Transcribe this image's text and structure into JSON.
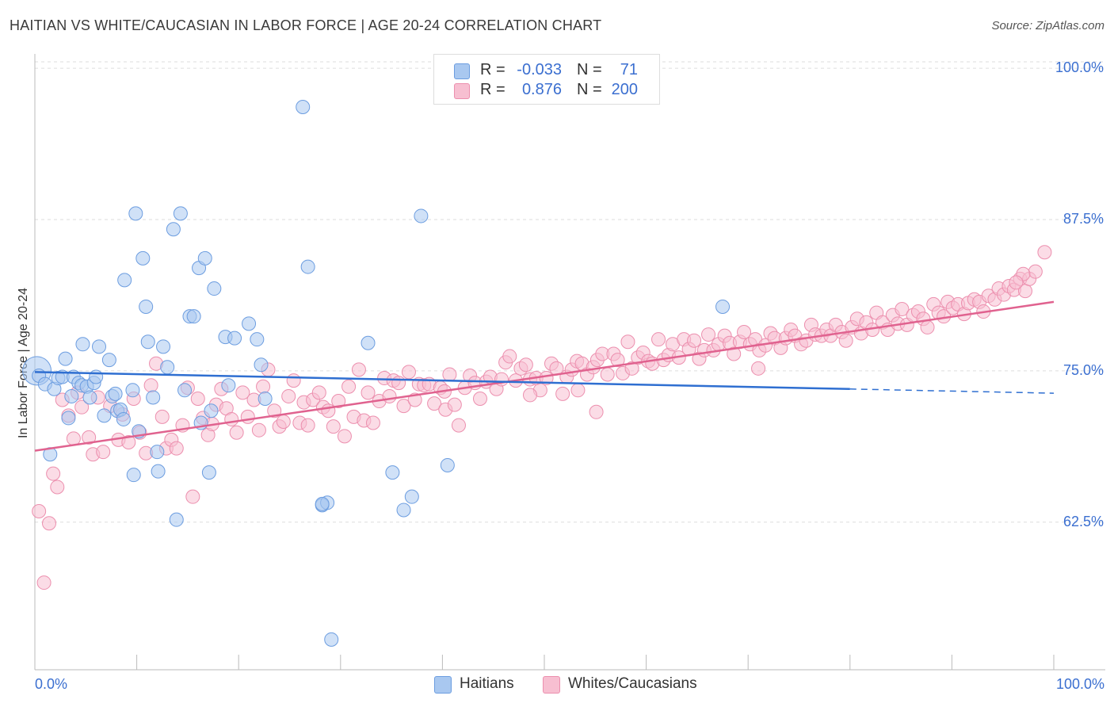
{
  "title": "HAITIAN VS WHITE/CAUCASIAN IN LABOR FORCE | AGE 20-24 CORRELATION CHART",
  "source": "Source: ZipAtlas.com",
  "colors": {
    "blue_fill": "#a9c8f0",
    "blue_stroke": "#6c9de0",
    "blue_line": "#2f6fd1",
    "pink_fill": "#f7bfd1",
    "pink_stroke": "#ec8fae",
    "pink_line": "#e0628f",
    "accent_text": "#3b6fd0",
    "grid": "#dddddd"
  },
  "stats": {
    "rows": [
      {
        "r_label": "R =",
        "r_value": "-0.033",
        "n_label": "N =",
        "n_value": "71"
      },
      {
        "r_label": "R =",
        "r_value": "0.876",
        "n_label": "N =",
        "n_value": "200"
      }
    ]
  },
  "legend": {
    "items": [
      "Haitians",
      "Whites/Caucasians"
    ]
  },
  "chart_data": {
    "type": "scatter",
    "title": "HAITIAN VS WHITE/CAUCASIAN IN LABOR FORCE | AGE 20-24 CORRELATION CHART",
    "xlabel": "",
    "ylabel": "In Labor Force | Age 20-24",
    "xlim": [
      0,
      100
    ],
    "ylim": [
      50.3,
      102.5
    ],
    "x_tick_labels": [
      "0.0%",
      "100.0%"
    ],
    "y_ticks": [
      62.5,
      75.0,
      87.5,
      100.0
    ],
    "y_tick_labels": [
      "62.5%",
      "75.0%",
      "87.5%",
      "100.0%"
    ],
    "grid": true,
    "legend_position": "bottom-center",
    "series": [
      {
        "name": "Haitians",
        "r": -0.033,
        "n": 71,
        "trend": {
          "x0": 0,
          "y0": 74.9,
          "x1": 80,
          "y1": 73.5,
          "dashed_to": 100,
          "y_end": 73.15
        },
        "points": [
          [
            0.2,
            75.0
          ],
          [
            0.4,
            74.6
          ],
          [
            1.0,
            73.9
          ],
          [
            1.5,
            68.1
          ],
          [
            1.9,
            73.5
          ],
          [
            2.3,
            74.4
          ],
          [
            2.7,
            74.5
          ],
          [
            3.0,
            76.0
          ],
          [
            3.3,
            71.1
          ],
          [
            3.6,
            72.9
          ],
          [
            3.8,
            74.5
          ],
          [
            4.3,
            74.0
          ],
          [
            4.6,
            73.8
          ],
          [
            4.7,
            77.2
          ],
          [
            5.1,
            73.7
          ],
          [
            5.4,
            72.8
          ],
          [
            5.8,
            74.0
          ],
          [
            6.0,
            74.5
          ],
          [
            6.3,
            77.0
          ],
          [
            6.8,
            71.3
          ],
          [
            7.3,
            75.9
          ],
          [
            7.6,
            72.9
          ],
          [
            7.9,
            73.1
          ],
          [
            8.1,
            71.7
          ],
          [
            8.4,
            71.8
          ],
          [
            8.7,
            71.0
          ],
          [
            8.8,
            82.5
          ],
          [
            9.6,
            73.4
          ],
          [
            9.7,
            66.4
          ],
          [
            9.9,
            88.0
          ],
          [
            10.2,
            70.0
          ],
          [
            10.6,
            84.3
          ],
          [
            10.9,
            80.3
          ],
          [
            11.1,
            77.4
          ],
          [
            11.6,
            72.8
          ],
          [
            12.0,
            68.3
          ],
          [
            12.1,
            66.7
          ],
          [
            12.6,
            77.0
          ],
          [
            13.0,
            75.3
          ],
          [
            13.6,
            86.7
          ],
          [
            13.9,
            62.7
          ],
          [
            14.3,
            88.0
          ],
          [
            14.7,
            73.4
          ],
          [
            15.2,
            79.5
          ],
          [
            15.6,
            79.5
          ],
          [
            16.1,
            83.5
          ],
          [
            16.3,
            70.7
          ],
          [
            16.7,
            84.3
          ],
          [
            17.1,
            66.6
          ],
          [
            17.3,
            71.7
          ],
          [
            17.6,
            81.8
          ],
          [
            18.7,
            77.8
          ],
          [
            19.0,
            73.8
          ],
          [
            19.6,
            77.7
          ],
          [
            21.0,
            78.9
          ],
          [
            21.8,
            77.6
          ],
          [
            22.2,
            75.5
          ],
          [
            22.6,
            72.7
          ],
          [
            26.3,
            96.8
          ],
          [
            26.8,
            83.6
          ],
          [
            28.2,
            63.9
          ],
          [
            28.7,
            64.1
          ],
          [
            29.1,
            52.8
          ],
          [
            32.7,
            77.3
          ],
          [
            35.1,
            66.6
          ],
          [
            36.2,
            63.5
          ],
          [
            37.0,
            64.6
          ],
          [
            37.9,
            87.8
          ],
          [
            40.5,
            67.2
          ],
          [
            67.5,
            80.3
          ],
          [
            28.2,
            64.0
          ]
        ]
      },
      {
        "name": "Whites/Caucasians",
        "r": 0.876,
        "n": 200,
        "trend": {
          "x0": 0,
          "y0": 68.4,
          "x1": 100,
          "y1": 80.7
        },
        "points": [
          [
            0.4,
            63.4
          ],
          [
            0.9,
            57.5
          ],
          [
            1.4,
            62.4
          ],
          [
            1.8,
            66.5
          ],
          [
            2.2,
            65.4
          ],
          [
            2.7,
            72.6
          ],
          [
            3.3,
            71.3
          ],
          [
            3.8,
            69.4
          ],
          [
            4.2,
            73.2
          ],
          [
            4.6,
            72.0
          ],
          [
            5.3,
            69.5
          ],
          [
            5.7,
            68.1
          ],
          [
            6.2,
            72.8
          ],
          [
            6.7,
            68.3
          ],
          [
            7.4,
            72.1
          ],
          [
            8.2,
            69.3
          ],
          [
            8.6,
            71.4
          ],
          [
            9.2,
            69.1
          ],
          [
            9.7,
            72.7
          ],
          [
            10.3,
            69.9
          ],
          [
            10.9,
            68.2
          ],
          [
            11.4,
            73.8
          ],
          [
            11.9,
            75.6
          ],
          [
            12.5,
            71.2
          ],
          [
            12.9,
            68.6
          ],
          [
            13.4,
            69.3
          ],
          [
            13.9,
            68.6
          ],
          [
            14.5,
            70.5
          ],
          [
            15.0,
            73.6
          ],
          [
            15.5,
            64.6
          ],
          [
            16.0,
            72.7
          ],
          [
            16.5,
            71.1
          ],
          [
            17.0,
            69.7
          ],
          [
            17.4,
            70.6
          ],
          [
            17.8,
            72.2
          ],
          [
            18.3,
            73.5
          ],
          [
            18.8,
            71.9
          ],
          [
            19.3,
            71.0
          ],
          [
            19.8,
            69.9
          ],
          [
            20.4,
            73.2
          ],
          [
            20.9,
            71.2
          ],
          [
            21.5,
            72.6
          ],
          [
            22.0,
            70.1
          ],
          [
            22.4,
            73.7
          ],
          [
            22.9,
            75.1
          ],
          [
            23.5,
            71.7
          ],
          [
            24.0,
            70.4
          ],
          [
            24.4,
            70.8
          ],
          [
            24.9,
            72.9
          ],
          [
            25.4,
            74.2
          ],
          [
            26.0,
            70.7
          ],
          [
            26.4,
            72.4
          ],
          [
            26.8,
            70.5
          ],
          [
            27.3,
            72.6
          ],
          [
            27.9,
            73.2
          ],
          [
            28.3,
            72.0
          ],
          [
            28.8,
            71.7
          ],
          [
            29.3,
            70.4
          ],
          [
            29.8,
            72.5
          ],
          [
            30.4,
            69.6
          ],
          [
            30.8,
            73.7
          ],
          [
            31.3,
            71.2
          ],
          [
            31.8,
            75.1
          ],
          [
            32.3,
            70.9
          ],
          [
            32.7,
            73.2
          ],
          [
            33.2,
            70.7
          ],
          [
            33.8,
            72.5
          ],
          [
            34.3,
            74.4
          ],
          [
            34.8,
            72.9
          ],
          [
            35.2,
            74.2
          ],
          [
            35.7,
            74.0
          ],
          [
            36.2,
            72.1
          ],
          [
            36.7,
            74.9
          ],
          [
            37.3,
            72.6
          ],
          [
            37.7,
            73.9
          ],
          [
            38.2,
            73.8
          ],
          [
            38.7,
            73.9
          ],
          [
            39.2,
            72.3
          ],
          [
            39.8,
            73.6
          ],
          [
            40.3,
            71.8
          ],
          [
            40.7,
            74.7
          ],
          [
            41.2,
            72.2
          ],
          [
            41.6,
            70.5
          ],
          [
            42.2,
            73.6
          ],
          [
            42.7,
            74.6
          ],
          [
            43.2,
            74.0
          ],
          [
            43.7,
            72.7
          ],
          [
            44.3,
            74.1
          ],
          [
            44.7,
            74.5
          ],
          [
            45.3,
            73.5
          ],
          [
            45.8,
            74.3
          ],
          [
            46.2,
            75.7
          ],
          [
            46.6,
            76.2
          ],
          [
            47.2,
            74.2
          ],
          [
            47.7,
            75.2
          ],
          [
            48.2,
            75.5
          ],
          [
            48.6,
            74.3
          ],
          [
            49.2,
            74.4
          ],
          [
            49.6,
            73.4
          ],
          [
            50.2,
            74.4
          ],
          [
            50.7,
            75.6
          ],
          [
            51.2,
            75.2
          ],
          [
            51.8,
            73.1
          ],
          [
            52.2,
            74.5
          ],
          [
            52.7,
            75.1
          ],
          [
            53.2,
            75.8
          ],
          [
            53.7,
            75.6
          ],
          [
            54.2,
            74.7
          ],
          [
            54.8,
            75.3
          ],
          [
            55.2,
            75.9
          ],
          [
            55.7,
            76.4
          ],
          [
            56.2,
            74.7
          ],
          [
            56.8,
            76.4
          ],
          [
            57.2,
            75.9
          ],
          [
            57.7,
            74.8
          ],
          [
            58.2,
            77.4
          ],
          [
            58.6,
            75.2
          ],
          [
            59.2,
            76.1
          ],
          [
            59.7,
            76.5
          ],
          [
            60.2,
            75.8
          ],
          [
            60.6,
            75.6
          ],
          [
            61.2,
            77.6
          ],
          [
            61.7,
            75.9
          ],
          [
            62.2,
            76.3
          ],
          [
            62.6,
            77.2
          ],
          [
            63.2,
            76.1
          ],
          [
            63.7,
            77.6
          ],
          [
            64.2,
            76.8
          ],
          [
            64.7,
            77.5
          ],
          [
            65.2,
            76.0
          ],
          [
            65.7,
            76.7
          ],
          [
            66.1,
            78.0
          ],
          [
            66.6,
            76.7
          ],
          [
            67.1,
            77.2
          ],
          [
            67.7,
            77.9
          ],
          [
            68.2,
            77.3
          ],
          [
            68.6,
            76.4
          ],
          [
            69.2,
            77.4
          ],
          [
            69.6,
            78.2
          ],
          [
            70.2,
            77.2
          ],
          [
            70.7,
            77.6
          ],
          [
            71.1,
            76.7
          ],
          [
            71.7,
            77.1
          ],
          [
            72.2,
            78.1
          ],
          [
            72.6,
            77.7
          ],
          [
            73.2,
            76.9
          ],
          [
            73.7,
            77.7
          ],
          [
            74.2,
            78.4
          ],
          [
            74.6,
            77.9
          ],
          [
            75.2,
            77.2
          ],
          [
            75.7,
            77.5
          ],
          [
            76.2,
            78.8
          ],
          [
            76.6,
            78.0
          ],
          [
            77.2,
            77.9
          ],
          [
            77.7,
            78.4
          ],
          [
            78.1,
            77.9
          ],
          [
            78.6,
            78.8
          ],
          [
            79.2,
            78.2
          ],
          [
            79.6,
            77.5
          ],
          [
            80.2,
            78.6
          ],
          [
            80.7,
            79.3
          ],
          [
            81.1,
            78.1
          ],
          [
            81.6,
            79.0
          ],
          [
            82.2,
            78.4
          ],
          [
            82.6,
            79.8
          ],
          [
            83.2,
            79.0
          ],
          [
            83.7,
            78.4
          ],
          [
            84.2,
            79.6
          ],
          [
            84.7,
            78.9
          ],
          [
            85.1,
            80.1
          ],
          [
            85.6,
            78.8
          ],
          [
            86.2,
            79.6
          ],
          [
            86.7,
            79.9
          ],
          [
            87.2,
            79.3
          ],
          [
            87.6,
            78.6
          ],
          [
            88.2,
            80.5
          ],
          [
            88.7,
            79.8
          ],
          [
            89.2,
            79.5
          ],
          [
            89.6,
            80.7
          ],
          [
            90.1,
            80.2
          ],
          [
            90.6,
            80.5
          ],
          [
            91.2,
            79.7
          ],
          [
            91.6,
            80.6
          ],
          [
            92.2,
            80.9
          ],
          [
            92.7,
            80.7
          ],
          [
            93.1,
            79.9
          ],
          [
            93.6,
            81.2
          ],
          [
            94.2,
            80.9
          ],
          [
            94.6,
            81.8
          ],
          [
            95.1,
            81.3
          ],
          [
            95.6,
            82.0
          ],
          [
            96.1,
            81.7
          ],
          [
            96.7,
            82.6
          ],
          [
            97.2,
            81.6
          ],
          [
            97.6,
            82.6
          ],
          [
            98.2,
            83.2
          ],
          [
            99.1,
            84.8
          ],
          [
            97.0,
            83.0
          ],
          [
            96.3,
            82.3
          ],
          [
            71.0,
            75.2
          ],
          [
            55.1,
            71.6
          ],
          [
            53.3,
            73.4
          ],
          [
            48.6,
            73.0
          ],
          [
            40.2,
            73.3
          ]
        ]
      }
    ]
  }
}
